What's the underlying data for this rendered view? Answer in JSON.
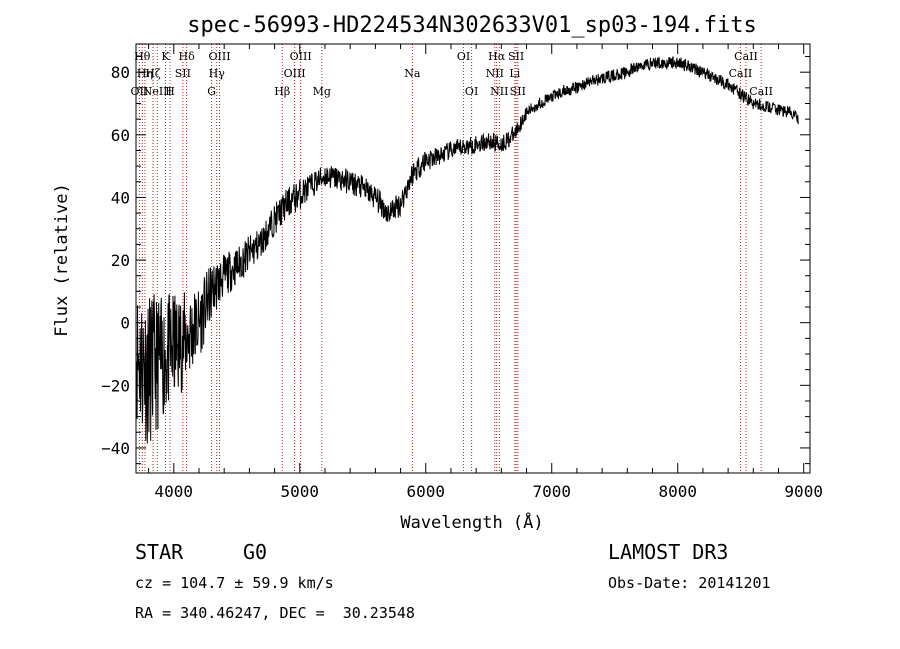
{
  "chart_data": {
    "type": "line",
    "title": "spec-56993-HD224534N302633V01_sp03-194.fits",
    "xlabel": "Wavelength (Å)",
    "ylabel": "Flux (relative)",
    "xlim": [
      3700,
      9050
    ],
    "ylim": [
      -48,
      89
    ],
    "xticks": [
      4000,
      5000,
      6000,
      7000,
      8000,
      9000
    ],
    "yticks": [
      -40,
      -20,
      0,
      20,
      40,
      60,
      80
    ],
    "series": [
      {
        "name": "spectrum",
        "x": [
          3700,
          3800,
          3900,
          4000,
          4100,
          4200,
          4300,
          4400,
          4500,
          4600,
          4700,
          4800,
          4900,
          5000,
          5100,
          5200,
          5300,
          5400,
          5500,
          5600,
          5700,
          5800,
          5900,
          6000,
          6100,
          6200,
          6300,
          6400,
          6500,
          6600,
          6700,
          6800,
          6900,
          7000,
          7100,
          7200,
          7300,
          7400,
          7500,
          7600,
          7700,
          7800,
          7900,
          8000,
          8100,
          8200,
          8300,
          8400,
          8500,
          8600,
          8700,
          8800,
          8900,
          8960
        ],
        "y": [
          -10,
          -15,
          -12,
          -8,
          -5,
          0,
          10,
          15,
          18,
          22,
          26,
          33,
          38,
          41,
          44,
          47,
          46,
          45,
          43,
          40,
          35,
          38,
          48,
          52,
          53,
          55,
          56,
          57,
          58,
          57,
          60,
          67,
          70,
          72,
          74,
          75,
          77,
          78,
          79,
          80,
          82,
          83,
          83,
          83,
          82,
          80,
          78,
          76,
          73,
          70,
          69,
          68,
          67,
          65
        ],
        "noise": [
          22,
          25,
          20,
          18,
          15,
          12,
          9,
          7,
          6,
          6,
          5,
          5,
          5,
          5,
          4,
          4,
          4,
          4,
          4,
          4,
          4,
          4,
          4,
          4,
          3,
          3,
          3,
          3,
          3,
          3,
          3,
          2,
          2,
          2,
          2,
          2,
          2,
          2,
          2,
          2,
          2,
          2,
          2,
          2,
          2,
          2,
          2,
          2,
          2,
          2,
          2,
          2,
          2,
          2
        ]
      }
    ],
    "spectral_lines": [
      {
        "wave": 3727,
        "label": "OII",
        "row": 3
      },
      {
        "wave": 3750,
        "label": "Hθ",
        "row": 1
      },
      {
        "wave": 3771,
        "label": "Hη",
        "row": 2
      },
      {
        "wave": 3835,
        "label": "Hζ",
        "row": 2
      },
      {
        "wave": 3869,
        "label": "NeIII",
        "row": 3
      },
      {
        "wave": 3934,
        "label": "K",
        "row": 1
      },
      {
        "wave": 3970,
        "label": "H",
        "row": 3
      },
      {
        "wave": 4072,
        "label": "SII",
        "row": 2
      },
      {
        "wave": 4102,
        "label": "Hδ",
        "row": 1
      },
      {
        "wave": 4300,
        "label": "G",
        "row": 3
      },
      {
        "wave": 4341,
        "label": "Hγ",
        "row": 2
      },
      {
        "wave": 4363,
        "label": "OIII",
        "row": 1
      },
      {
        "wave": 4861,
        "label": "Hβ",
        "row": 3
      },
      {
        "wave": 4959,
        "label": "OIII",
        "row": 2
      },
      {
        "wave": 5007,
        "label": "OIII",
        "row": 1
      },
      {
        "wave": 5175,
        "label": "Mg",
        "row": 3
      },
      {
        "wave": 5894,
        "label": "Na",
        "row": 2
      },
      {
        "wave": 6300,
        "label": "OI",
        "row": 1
      },
      {
        "wave": 6364,
        "label": "OI",
        "row": 3
      },
      {
        "wave": 6548,
        "label": "NII",
        "row": 2
      },
      {
        "wave": 6563,
        "label": "Hα",
        "row": 1
      },
      {
        "wave": 6584,
        "label": "NII",
        "row": 3
      },
      {
        "wave": 6707,
        "label": "Li",
        "row": 2
      },
      {
        "wave": 6717,
        "label": "SII",
        "row": 1
      },
      {
        "wave": 6731,
        "label": "SII",
        "row": 3
      },
      {
        "wave": 8498,
        "label": "CaII",
        "row": 2
      },
      {
        "wave": 8542,
        "label": "CaII",
        "row": 1
      },
      {
        "wave": 8662,
        "label": "CaII",
        "row": 3
      }
    ],
    "line_color": "#b22222"
  },
  "info": {
    "object_class": "STAR",
    "subclass": "G0",
    "survey": "LAMOST DR3",
    "redshift": "cz = 104.7 ± 59.9 km/s",
    "obs_date": "Obs-Date: 20141201",
    "coords": "RA = 340.46247, DEC =  30.23548"
  }
}
